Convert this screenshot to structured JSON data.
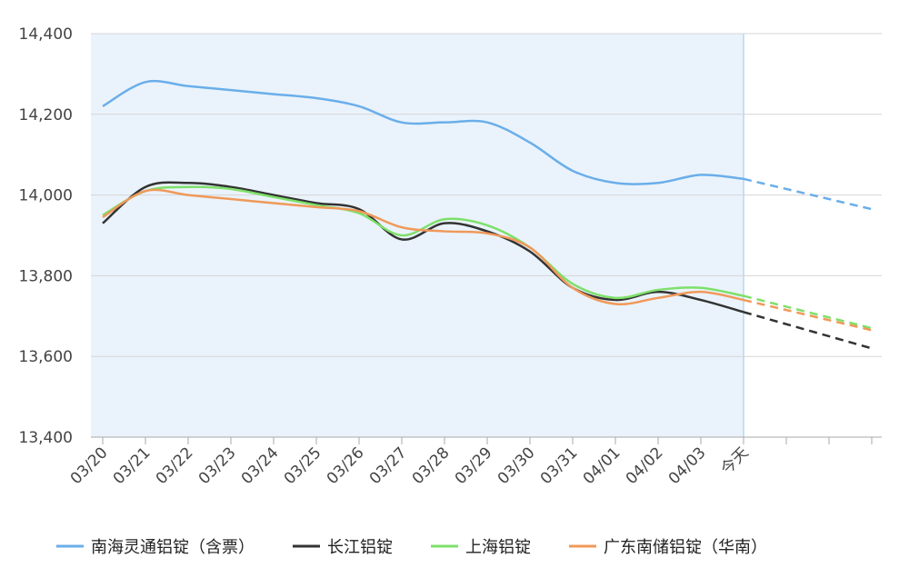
{
  "chart_data": {
    "type": "line",
    "categories": [
      "03/20",
      "03/21",
      "03/22",
      "03/23",
      "03/24",
      "03/25",
      "03/26",
      "03/27",
      "03/28",
      "03/29",
      "03/30",
      "03/31",
      "04/01",
      "04/02",
      "04/03",
      "今天",
      null,
      null,
      null
    ],
    "series": [
      {
        "name": "南海灵通铝锭（含票）",
        "color": "#6aaeea",
        "values": [
          14220,
          14280,
          14270,
          14260,
          14250,
          14240,
          14220,
          14180,
          14180,
          14180,
          14130,
          14060,
          14030,
          14030,
          14050,
          14040,
          null,
          null,
          13965
        ]
      },
      {
        "name": "长江铝锭",
        "color": "#333333",
        "values": [
          13930,
          14020,
          14030,
          14020,
          14000,
          13980,
          13965,
          13890,
          13930,
          13910,
          13860,
          13770,
          13740,
          13760,
          13740,
          13710,
          null,
          null,
          13620
        ]
      },
      {
        "name": "上海铝锭",
        "color": "#7ee06a",
        "values": [
          13950,
          14010,
          14020,
          14015,
          13995,
          13975,
          13955,
          13900,
          13940,
          13925,
          13870,
          13780,
          13745,
          13765,
          13770,
          13750,
          null,
          null,
          13670
        ]
      },
      {
        "name": "广东南储铝锭（华南）",
        "color": "#f0995a",
        "values": [
          13945,
          14010,
          14000,
          13990,
          13980,
          13970,
          13960,
          13920,
          13910,
          13905,
          13870,
          13770,
          13730,
          13745,
          13760,
          13740,
          null,
          null,
          13665
        ]
      }
    ],
    "ylim": [
      13400,
      14400
    ],
    "yticks": [
      {
        "value": 13400,
        "label": "13,400"
      },
      {
        "value": 13600,
        "label": "13,600"
      },
      {
        "value": 13800,
        "label": "13,800"
      },
      {
        "value": 14000,
        "label": "14,000"
      },
      {
        "value": 14200,
        "label": "14,200"
      },
      {
        "value": 14400,
        "label": "14,400"
      }
    ],
    "grid": true
  }
}
